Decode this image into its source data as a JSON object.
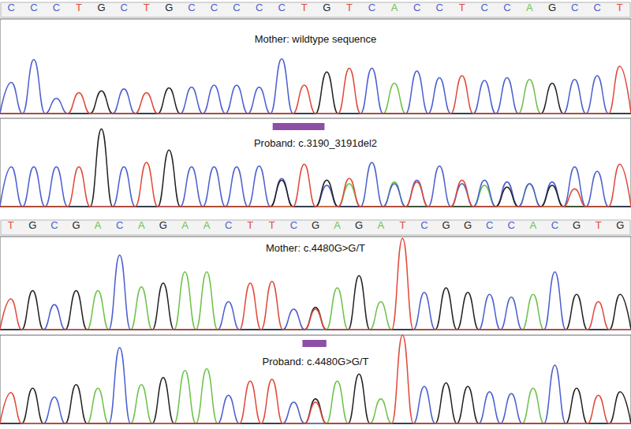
{
  "chart_data": [
    {
      "type": "line",
      "categories": [
        "C",
        "C",
        "C",
        "T",
        "G",
        "C",
        "T",
        "G",
        "C",
        "C",
        "C",
        "C",
        "C",
        "T",
        "G",
        "T",
        "C",
        "A",
        "C",
        "C",
        "T",
        "C",
        "C",
        "A",
        "G",
        "C",
        "C",
        "T"
      ],
      "ylim": [
        0,
        100
      ],
      "tick_labels": "x",
      "panels": [
        {
          "title": "Mother: wildtype sequence",
          "series": [
            {
              "name": "A",
              "color": "#6cc24a",
              "values": [
                0,
                0,
                0,
                0,
                0,
                0,
                0,
                0,
                0,
                0,
                0,
                0,
                0,
                0,
                0,
                0,
                0,
                32,
                0,
                0,
                0,
                0,
                0,
                36,
                0,
                0,
                0,
                0
              ]
            },
            {
              "name": "C",
              "color": "#4b5fce",
              "values": [
                33,
                57,
                16,
                0,
                0,
                26,
                0,
                0,
                28,
                30,
                30,
                28,
                58,
                0,
                0,
                0,
                48,
                0,
                45,
                38,
                0,
                35,
                38,
                0,
                0,
                36,
                40,
                0
              ]
            },
            {
              "name": "G",
              "color": "#222222",
              "values": [
                0,
                0,
                0,
                0,
                24,
                0,
                0,
                27,
                0,
                0,
                0,
                0,
                0,
                0,
                44,
                0,
                0,
                0,
                0,
                0,
                0,
                0,
                0,
                0,
                32,
                0,
                0,
                0
              ]
            },
            {
              "name": "T",
              "color": "#e04a3a",
              "values": [
                0,
                0,
                0,
                22,
                0,
                0,
                22,
                0,
                0,
                0,
                0,
                0,
                0,
                30,
                0,
                48,
                0,
                0,
                0,
                0,
                40,
                0,
                0,
                0,
                0,
                0,
                0,
                50
              ]
            }
          ]
        },
        {
          "title": "Proband: c.3190_3191del2",
          "highlight": [
            11.6,
            13.9
          ],
          "series": [
            {
              "name": "A",
              "color": "#6cc24a",
              "values": [
                0,
                0,
                0,
                0,
                0,
                0,
                0,
                0,
                0,
                0,
                0,
                0,
                0,
                0,
                0,
                26,
                0,
                28,
                0,
                0,
                0,
                24,
                0,
                26,
                0,
                0,
                0,
                0
              ]
            },
            {
              "name": "C",
              "color": "#4b5fce",
              "values": [
                45,
                45,
                45,
                0,
                0,
                45,
                0,
                0,
                45,
                45,
                45,
                46,
                32,
                0,
                24,
                0,
                50,
                26,
                30,
                46,
                26,
                30,
                28,
                26,
                28,
                45,
                40,
                0
              ]
            },
            {
              "name": "G",
              "color": "#222222",
              "values": [
                0,
                0,
                0,
                0,
                88,
                0,
                0,
                64,
                0,
                0,
                0,
                0,
                30,
                0,
                30,
                0,
                0,
                0,
                0,
                0,
                0,
                0,
                22,
                0,
                24,
                0,
                0,
                0
              ]
            },
            {
              "name": "T",
              "color": "#e04a3a",
              "values": [
                0,
                0,
                0,
                45,
                0,
                0,
                50,
                0,
                0,
                0,
                0,
                0,
                0,
                48,
                0,
                32,
                0,
                0,
                28,
                0,
                30,
                0,
                0,
                0,
                0,
                20,
                0,
                48
              ]
            }
          ]
        }
      ]
    },
    {
      "type": "line",
      "categories": [
        "T",
        "G",
        "C",
        "G",
        "A",
        "C",
        "A",
        "G",
        "A",
        "A",
        "C",
        "T",
        "T",
        "C",
        "G",
        "A",
        "G",
        "A",
        "T",
        "C",
        "G",
        "G",
        "C",
        "C",
        "A",
        "C",
        "G",
        "T",
        "G"
      ],
      "ylim": [
        0,
        100
      ],
      "tick_labels": "x",
      "panels": [
        {
          "title": "Mother: c.4480G>G/T",
          "series": [
            {
              "name": "A",
              "color": "#6cc24a",
              "values": [
                0,
                0,
                0,
                0,
                42,
                0,
                46,
                0,
                62,
                62,
                0,
                0,
                0,
                0,
                0,
                45,
                0,
                30,
                0,
                0,
                0,
                0,
                0,
                0,
                38,
                0,
                0,
                0,
                0
              ]
            },
            {
              "name": "C",
              "color": "#4b5fce",
              "values": [
                0,
                0,
                27,
                0,
                0,
                80,
                0,
                0,
                0,
                0,
                30,
                0,
                0,
                22,
                0,
                0,
                0,
                0,
                0,
                40,
                0,
                0,
                38,
                35,
                0,
                62,
                0,
                0,
                0
              ]
            },
            {
              "name": "G",
              "color": "#222222",
              "values": [
                0,
                42,
                0,
                42,
                0,
                0,
                0,
                50,
                0,
                0,
                0,
                0,
                0,
                0,
                24,
                0,
                58,
                0,
                0,
                0,
                45,
                40,
                0,
                0,
                0,
                0,
                38,
                0,
                38
              ]
            },
            {
              "name": "T",
              "color": "#e04a3a",
              "values": [
                33,
                0,
                0,
                0,
                0,
                0,
                0,
                0,
                0,
                0,
                0,
                50,
                52,
                0,
                22,
                0,
                0,
                0,
                98,
                0,
                0,
                0,
                0,
                0,
                0,
                0,
                0,
                30,
                0
              ]
            }
          ]
        },
        {
          "title": "Proband: c.4480G>G/T",
          "highlight": [
            13.4,
            14.5
          ],
          "series": [
            {
              "name": "A",
              "color": "#6cc24a",
              "values": [
                0,
                0,
                0,
                0,
                40,
                0,
                44,
                0,
                60,
                62,
                0,
                0,
                0,
                0,
                0,
                48,
                0,
                28,
                0,
                0,
                0,
                0,
                0,
                0,
                40,
                0,
                0,
                0,
                0
              ]
            },
            {
              "name": "C",
              "color": "#4b5fce",
              "values": [
                0,
                0,
                30,
                0,
                0,
                86,
                0,
                0,
                0,
                0,
                32,
                0,
                0,
                24,
                0,
                0,
                0,
                0,
                0,
                42,
                0,
                0,
                36,
                34,
                0,
                66,
                0,
                0,
                0
              ]
            },
            {
              "name": "G",
              "color": "#222222",
              "values": [
                0,
                40,
                0,
                44,
                0,
                0,
                0,
                52,
                0,
                0,
                0,
                0,
                0,
                0,
                28,
                0,
                56,
                0,
                0,
                0,
                46,
                42,
                0,
                0,
                0,
                0,
                40,
                0,
                36
              ]
            },
            {
              "name": "T",
              "color": "#e04a3a",
              "values": [
                35,
                0,
                0,
                0,
                0,
                0,
                0,
                0,
                0,
                0,
                0,
                48,
                50,
                0,
                24,
                0,
                0,
                0,
                100,
                0,
                0,
                0,
                0,
                0,
                0,
                0,
                0,
                32,
                0
              ]
            }
          ]
        }
      ]
    }
  ]
}
